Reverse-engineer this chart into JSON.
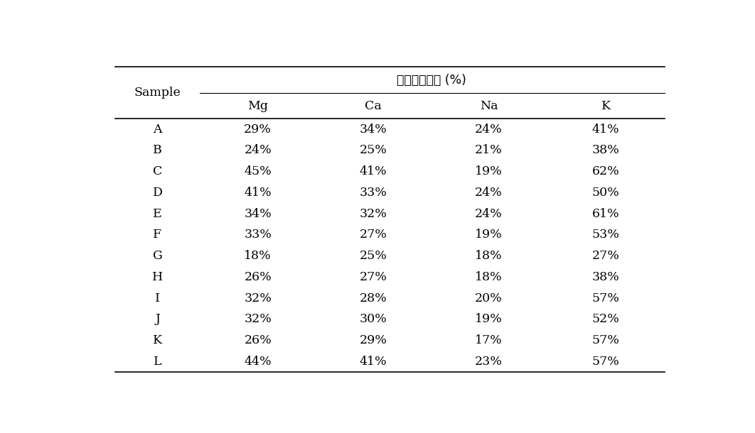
{
  "title": "상대표준편차 (%)",
  "col_header_row2": [
    "Mg",
    "Ca",
    "Na",
    "K"
  ],
  "rows": [
    [
      "A",
      "29%",
      "34%",
      "24%",
      "41%"
    ],
    [
      "B",
      "24%",
      "25%",
      "21%",
      "38%"
    ],
    [
      "C",
      "45%",
      "41%",
      "19%",
      "62%"
    ],
    [
      "D",
      "41%",
      "33%",
      "24%",
      "50%"
    ],
    [
      "E",
      "34%",
      "32%",
      "24%",
      "61%"
    ],
    [
      "F",
      "33%",
      "27%",
      "19%",
      "53%"
    ],
    [
      "G",
      "18%",
      "25%",
      "18%",
      "27%"
    ],
    [
      "H",
      "26%",
      "27%",
      "18%",
      "38%"
    ],
    [
      "I",
      "32%",
      "28%",
      "20%",
      "57%"
    ],
    [
      "J",
      "32%",
      "30%",
      "19%",
      "52%"
    ],
    [
      "K",
      "26%",
      "29%",
      "17%",
      "57%"
    ],
    [
      "L",
      "44%",
      "41%",
      "23%",
      "57%"
    ]
  ],
  "font_size": 12.5,
  "background_color": "#ffffff",
  "text_color": "#000000",
  "line_color": "#000000"
}
